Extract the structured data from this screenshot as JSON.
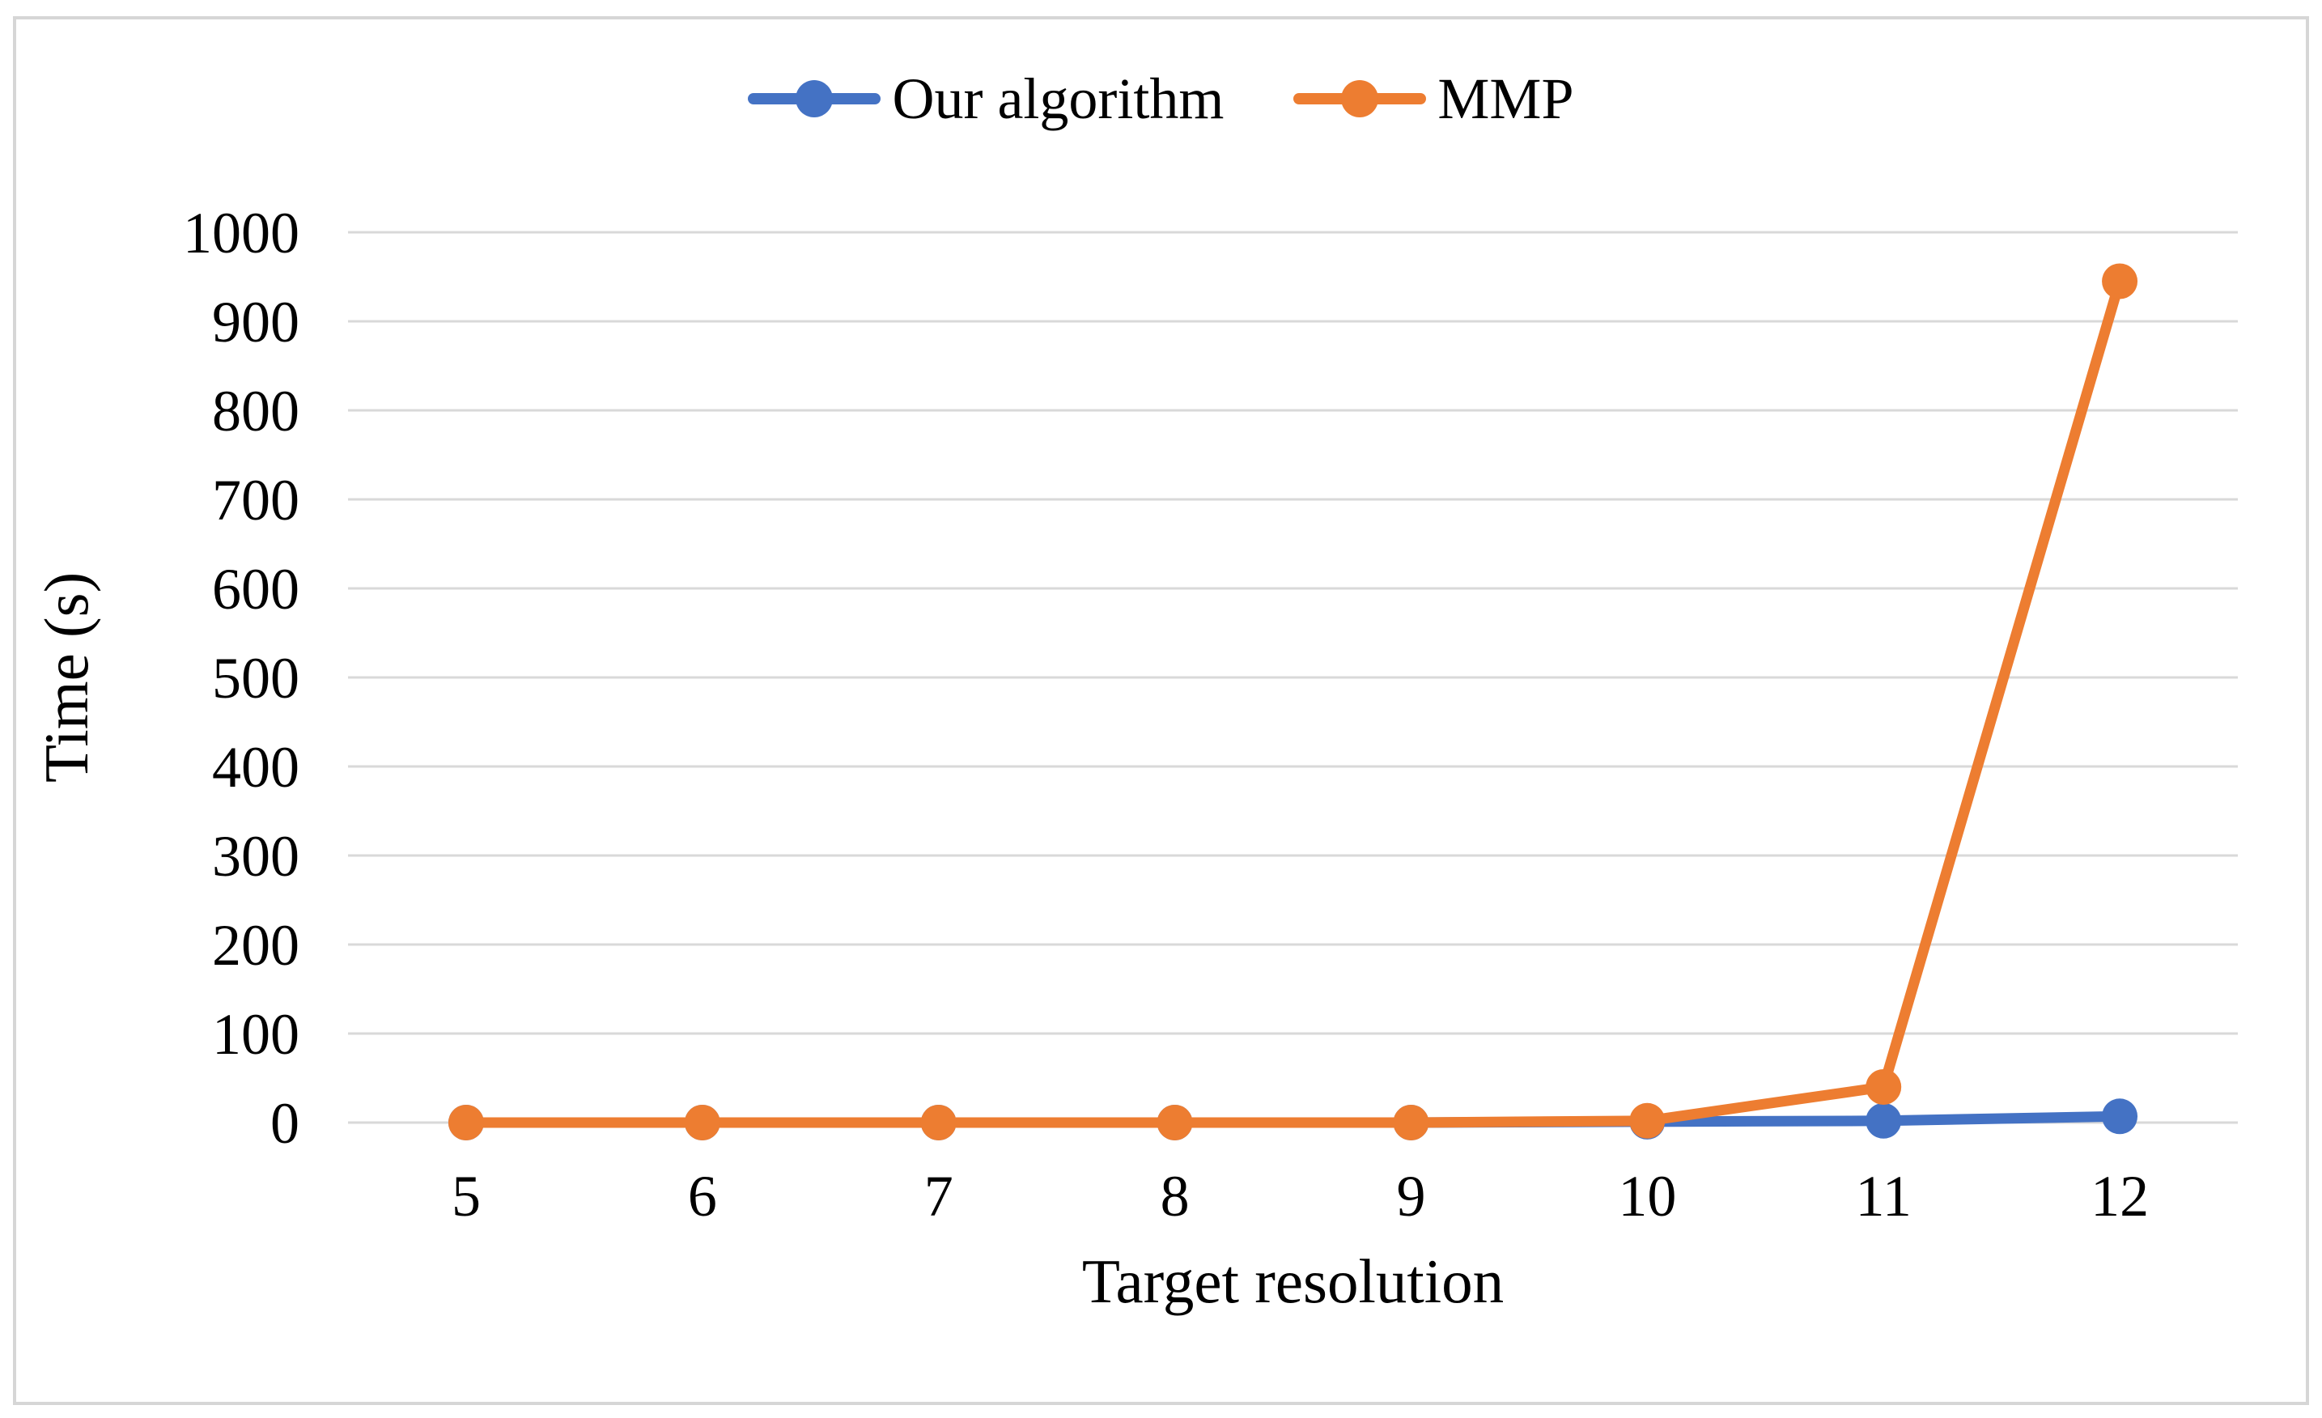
{
  "figure": {
    "background": "#ffffff",
    "border_color": "#d6d6d6"
  },
  "chart_data": {
    "type": "line",
    "title": "",
    "xlabel": "Target resolution",
    "ylabel": "Time (s)",
    "x": [
      5,
      6,
      7,
      8,
      9,
      10,
      11,
      12
    ],
    "series": [
      {
        "name": "Our algorithm",
        "color": "#4472C4",
        "values": [
          0,
          0,
          0,
          0,
          0,
          1,
          2,
          7
        ]
      },
      {
        "name": "MMP",
        "color": "#ED7D31",
        "values": [
          0,
          0,
          0,
          0,
          0,
          2,
          40,
          945
        ]
      }
    ],
    "ylim": [
      0,
      1000
    ],
    "ytick_step": 100,
    "yticks": [
      0,
      100,
      200,
      300,
      400,
      500,
      600,
      700,
      800,
      900,
      1000
    ],
    "grid": true,
    "gridline_color": "#d9d9d9",
    "legend_position": "top"
  }
}
